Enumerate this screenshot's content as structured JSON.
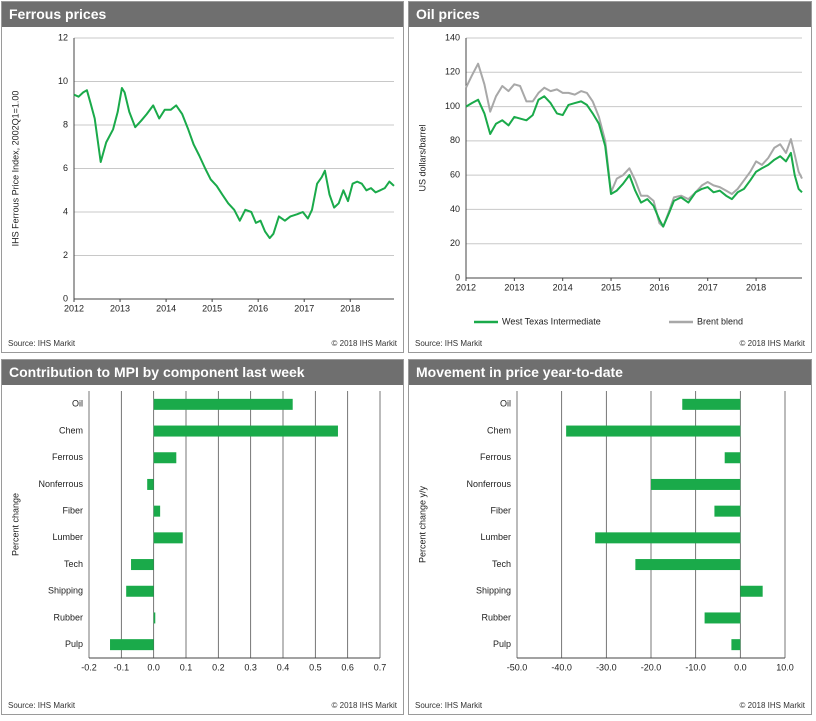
{
  "panels": {
    "ferrous": {
      "title": "Ferrous prices",
      "source": "Source:  IHS Markit",
      "copyright": "© 2018  IHS Markit"
    },
    "oil": {
      "title": "Oil prices",
      "source": "Source:  IHS Markit",
      "copyright": "© 2018  IHS Markit"
    },
    "contribution": {
      "title": "Contribution  to MPI by component last week",
      "source": "Source:  IHS Markit",
      "copyright": "© 2018  IHS Markit"
    },
    "movement": {
      "title": "Movement in price year-to-date",
      "source": "Source:  IHS Markit",
      "copyright": "© 2018  IHS Markit"
    }
  },
  "chart_data": [
    {
      "type": "line",
      "title": "Ferrous prices",
      "ylabel": "IHS Ferrous Price Index, 2002Q1=1.00",
      "xlabel": "",
      "ylim": [
        0,
        12
      ],
      "yticks": [
        "0",
        "2",
        "4",
        "6",
        "8",
        "10",
        "12"
      ],
      "xlim": [
        2012,
        2018.95
      ],
      "xticks": [
        "2012",
        "2013",
        "2014",
        "2015",
        "2016",
        "2017",
        "2018"
      ],
      "grid": "horizontal",
      "series": [
        {
          "color": "#1aaa4a",
          "x": [
            2012.0,
            2012.1,
            2012.2,
            2012.28,
            2012.36,
            2012.45,
            2012.58,
            2012.7,
            2012.85,
            2012.95,
            2013.04,
            2013.1,
            2013.2,
            2013.33,
            2013.46,
            2013.58,
            2013.72,
            2013.85,
            2013.97,
            2014.1,
            2014.22,
            2014.35,
            2014.48,
            2014.6,
            2014.72,
            2014.85,
            2014.97,
            2015.1,
            2015.22,
            2015.35,
            2015.48,
            2015.6,
            2015.72,
            2015.85,
            2015.95,
            2016.05,
            2016.15,
            2016.25,
            2016.33,
            2016.45,
            2016.58,
            2016.7,
            2016.85,
            2016.97,
            2017.08,
            2017.17,
            2017.28,
            2017.38,
            2017.45,
            2017.55,
            2017.65,
            2017.75,
            2017.85,
            2017.95,
            2018.05,
            2018.15,
            2018.25,
            2018.35,
            2018.45,
            2018.55,
            2018.65,
            2018.75,
            2018.85,
            2018.95
          ],
          "y": [
            9.4,
            9.3,
            9.5,
            9.6,
            9.0,
            8.3,
            6.3,
            7.2,
            7.8,
            8.6,
            9.7,
            9.5,
            8.6,
            7.9,
            8.2,
            8.5,
            8.9,
            8.3,
            8.7,
            8.7,
            8.9,
            8.5,
            7.8,
            7.1,
            6.6,
            6.0,
            5.5,
            5.2,
            4.8,
            4.4,
            4.1,
            3.6,
            4.1,
            4.0,
            3.5,
            3.6,
            3.1,
            2.8,
            3.0,
            3.8,
            3.6,
            3.8,
            3.9,
            4.0,
            3.7,
            4.1,
            5.3,
            5.6,
            5.9,
            4.8,
            4.2,
            4.4,
            5.0,
            4.5,
            5.3,
            5.4,
            5.3,
            5.0,
            5.1,
            4.9,
            5.0,
            5.1,
            5.4,
            5.2
          ]
        }
      ]
    },
    {
      "type": "line",
      "title": "Oil prices",
      "ylabel": "US dollars/barrel",
      "xlabel": "",
      "ylim": [
        0,
        140
      ],
      "yticks": [
        "0",
        "20",
        "40",
        "60",
        "80",
        "100",
        "120",
        "140"
      ],
      "xlim": [
        2012,
        2018.95
      ],
      "xticks": [
        "2012",
        "2013",
        "2014",
        "2015",
        "2016",
        "2017",
        "2018"
      ],
      "grid": "horizontal",
      "legend": "bottom",
      "series": [
        {
          "name": "West Texas Intermediate",
          "color": "#1aaa4a",
          "x": [
            2012.0,
            2012.12,
            2012.25,
            2012.38,
            2012.5,
            2012.62,
            2012.75,
            2012.88,
            2013.0,
            2013.12,
            2013.25,
            2013.38,
            2013.5,
            2013.62,
            2013.75,
            2013.88,
            2014.0,
            2014.12,
            2014.25,
            2014.38,
            2014.5,
            2014.62,
            2014.75,
            2014.88,
            2015.0,
            2015.12,
            2015.25,
            2015.38,
            2015.5,
            2015.62,
            2015.75,
            2015.88,
            2016.0,
            2016.08,
            2016.2,
            2016.3,
            2016.45,
            2016.6,
            2016.75,
            2016.88,
            2017.0,
            2017.12,
            2017.25,
            2017.38,
            2017.5,
            2017.62,
            2017.75,
            2017.88,
            2018.0,
            2018.12,
            2018.25,
            2018.38,
            2018.5,
            2018.62,
            2018.72,
            2018.8,
            2018.88,
            2018.95
          ],
          "y": [
            100,
            102,
            104,
            96,
            84,
            90,
            92,
            89,
            94,
            93,
            92,
            95,
            104,
            106,
            102,
            96,
            95,
            101,
            102,
            103,
            101,
            96,
            90,
            77,
            49,
            51,
            55,
            60,
            51,
            44,
            46,
            42,
            34,
            30,
            38,
            45,
            47,
            44,
            50,
            52,
            53,
            50,
            51,
            48,
            46,
            50,
            52,
            57,
            62,
            64,
            66,
            69,
            71,
            68,
            73,
            60,
            52,
            50
          ]
        },
        {
          "name": "Brent blend",
          "color": "#a8a8a8",
          "x": [
            2012.0,
            2012.12,
            2012.25,
            2012.38,
            2012.5,
            2012.62,
            2012.75,
            2012.88,
            2013.0,
            2013.12,
            2013.25,
            2013.38,
            2013.5,
            2013.62,
            2013.75,
            2013.88,
            2014.0,
            2014.12,
            2014.25,
            2014.38,
            2014.5,
            2014.62,
            2014.75,
            2014.88,
            2015.0,
            2015.12,
            2015.25,
            2015.38,
            2015.5,
            2015.62,
            2015.75,
            2015.88,
            2016.0,
            2016.08,
            2016.2,
            2016.3,
            2016.45,
            2016.6,
            2016.75,
            2016.88,
            2017.0,
            2017.12,
            2017.25,
            2017.38,
            2017.5,
            2017.62,
            2017.75,
            2017.88,
            2018.0,
            2018.12,
            2018.25,
            2018.38,
            2018.5,
            2018.62,
            2018.72,
            2018.8,
            2018.88,
            2018.95
          ],
          "y": [
            111,
            118,
            125,
            113,
            97,
            106,
            112,
            109,
            113,
            112,
            103,
            103,
            108,
            111,
            109,
            110,
            108,
            108,
            107,
            109,
            108,
            103,
            94,
            80,
            50,
            58,
            60,
            64,
            57,
            48,
            48,
            45,
            32,
            30,
            39,
            47,
            48,
            46,
            50,
            54,
            56,
            54,
            53,
            51,
            49,
            52,
            57,
            62,
            68,
            66,
            70,
            76,
            78,
            73,
            81,
            72,
            62,
            58
          ]
        }
      ]
    },
    {
      "type": "bar",
      "orientation": "horizontal",
      "title": "Contribution  to MPI by component last week",
      "ylabel": "Percent change",
      "xlabel": "",
      "xlim": [
        -0.2,
        0.7
      ],
      "xticks": [
        "-0.2",
        "-0.1",
        "0.0",
        "0.1",
        "0.2",
        "0.3",
        "0.4",
        "0.5",
        "0.6",
        "0.7"
      ],
      "grid": "vertical",
      "color": "#1aaa4a",
      "categories": [
        "Oil",
        "Chem",
        "Ferrous",
        "Nonferrous",
        "Fiber",
        "Lumber",
        "Tech",
        "Shipping",
        "Rubber",
        "Pulp"
      ],
      "values": [
        0.43,
        0.57,
        0.07,
        -0.02,
        0.02,
        0.09,
        -0.07,
        -0.085,
        0.005,
        -0.135
      ]
    },
    {
      "type": "bar",
      "orientation": "horizontal",
      "title": "Movement in price year-to-date",
      "ylabel": "Percent change y/y",
      "xlabel": "",
      "xlim": [
        -50,
        10
      ],
      "xticks": [
        "-50.0",
        "-40.0",
        "-30.0",
        "-20.0",
        "-10.0",
        "0.0",
        "10.0"
      ],
      "grid": "vertical",
      "color": "#1aaa4a",
      "categories": [
        "Oil",
        "Chem",
        "Ferrous",
        "Nonferrous",
        "Fiber",
        "Lumber",
        "Tech",
        "Shipping",
        "Rubber",
        "Pulp"
      ],
      "values": [
        -13,
        -39,
        -3.5,
        -20,
        -5.8,
        -32.5,
        -23.5,
        5,
        -8,
        -2
      ]
    }
  ]
}
